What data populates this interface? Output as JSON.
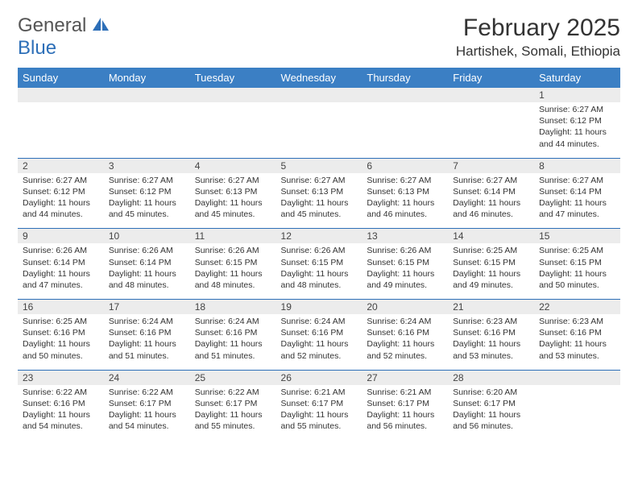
{
  "logo": {
    "text1": "General",
    "text2": "Blue",
    "icon_fill": "#2d6fb8"
  },
  "title": "February 2025",
  "location": "Hartishek, Somali, Ethiopia",
  "colors": {
    "header_bg": "#3b7fc4",
    "header_text": "#ffffff",
    "daynum_bg": "#ececec",
    "border": "#2d6fb8",
    "text": "#333333"
  },
  "day_names": [
    "Sunday",
    "Monday",
    "Tuesday",
    "Wednesday",
    "Thursday",
    "Friday",
    "Saturday"
  ],
  "weeks": [
    {
      "nums": [
        "",
        "",
        "",
        "",
        "",
        "",
        "1"
      ],
      "cells": [
        "",
        "",
        "",
        "",
        "",
        "",
        "Sunrise: 6:27 AM\nSunset: 6:12 PM\nDaylight: 11 hours and 44 minutes."
      ]
    },
    {
      "nums": [
        "2",
        "3",
        "4",
        "5",
        "6",
        "7",
        "8"
      ],
      "cells": [
        "Sunrise: 6:27 AM\nSunset: 6:12 PM\nDaylight: 11 hours and 44 minutes.",
        "Sunrise: 6:27 AM\nSunset: 6:12 PM\nDaylight: 11 hours and 45 minutes.",
        "Sunrise: 6:27 AM\nSunset: 6:13 PM\nDaylight: 11 hours and 45 minutes.",
        "Sunrise: 6:27 AM\nSunset: 6:13 PM\nDaylight: 11 hours and 45 minutes.",
        "Sunrise: 6:27 AM\nSunset: 6:13 PM\nDaylight: 11 hours and 46 minutes.",
        "Sunrise: 6:27 AM\nSunset: 6:14 PM\nDaylight: 11 hours and 46 minutes.",
        "Sunrise: 6:27 AM\nSunset: 6:14 PM\nDaylight: 11 hours and 47 minutes."
      ]
    },
    {
      "nums": [
        "9",
        "10",
        "11",
        "12",
        "13",
        "14",
        "15"
      ],
      "cells": [
        "Sunrise: 6:26 AM\nSunset: 6:14 PM\nDaylight: 11 hours and 47 minutes.",
        "Sunrise: 6:26 AM\nSunset: 6:14 PM\nDaylight: 11 hours and 48 minutes.",
        "Sunrise: 6:26 AM\nSunset: 6:15 PM\nDaylight: 11 hours and 48 minutes.",
        "Sunrise: 6:26 AM\nSunset: 6:15 PM\nDaylight: 11 hours and 48 minutes.",
        "Sunrise: 6:26 AM\nSunset: 6:15 PM\nDaylight: 11 hours and 49 minutes.",
        "Sunrise: 6:25 AM\nSunset: 6:15 PM\nDaylight: 11 hours and 49 minutes.",
        "Sunrise: 6:25 AM\nSunset: 6:15 PM\nDaylight: 11 hours and 50 minutes."
      ]
    },
    {
      "nums": [
        "16",
        "17",
        "18",
        "19",
        "20",
        "21",
        "22"
      ],
      "cells": [
        "Sunrise: 6:25 AM\nSunset: 6:16 PM\nDaylight: 11 hours and 50 minutes.",
        "Sunrise: 6:24 AM\nSunset: 6:16 PM\nDaylight: 11 hours and 51 minutes.",
        "Sunrise: 6:24 AM\nSunset: 6:16 PM\nDaylight: 11 hours and 51 minutes.",
        "Sunrise: 6:24 AM\nSunset: 6:16 PM\nDaylight: 11 hours and 52 minutes.",
        "Sunrise: 6:24 AM\nSunset: 6:16 PM\nDaylight: 11 hours and 52 minutes.",
        "Sunrise: 6:23 AM\nSunset: 6:16 PM\nDaylight: 11 hours and 53 minutes.",
        "Sunrise: 6:23 AM\nSunset: 6:16 PM\nDaylight: 11 hours and 53 minutes."
      ]
    },
    {
      "nums": [
        "23",
        "24",
        "25",
        "26",
        "27",
        "28",
        ""
      ],
      "cells": [
        "Sunrise: 6:22 AM\nSunset: 6:16 PM\nDaylight: 11 hours and 54 minutes.",
        "Sunrise: 6:22 AM\nSunset: 6:17 PM\nDaylight: 11 hours and 54 minutes.",
        "Sunrise: 6:22 AM\nSunset: 6:17 PM\nDaylight: 11 hours and 55 minutes.",
        "Sunrise: 6:21 AM\nSunset: 6:17 PM\nDaylight: 11 hours and 55 minutes.",
        "Sunrise: 6:21 AM\nSunset: 6:17 PM\nDaylight: 11 hours and 56 minutes.",
        "Sunrise: 6:20 AM\nSunset: 6:17 PM\nDaylight: 11 hours and 56 minutes.",
        ""
      ]
    }
  ]
}
